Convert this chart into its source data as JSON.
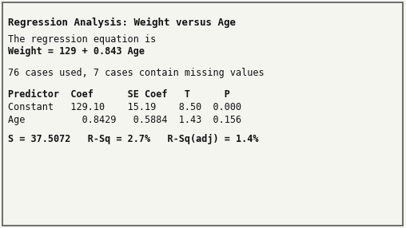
{
  "title": "Regression Analysis: Weight versus Age",
  "line2": "The regression equation is",
  "line3": "Weight = 129 + 0.843 Age",
  "line4": "76 cases used, 7 cases contain missing values",
  "col_header": "Predictor  Coef      SE Coef   T      P",
  "row1": "Constant   129.10    15.19    8.50  0.000",
  "row2": "Age          0.8429   0.5884  1.43  0.156",
  "footer": "S = 37.5072   R-Sq = 2.7%   R-Sq(adj) = 1.4%",
  "bg_color": "#f5f5f0",
  "border_color": "#555555",
  "text_color": "#111111",
  "font_family": "monospace",
  "font_size": 8.5,
  "title_font_size": 9.0
}
